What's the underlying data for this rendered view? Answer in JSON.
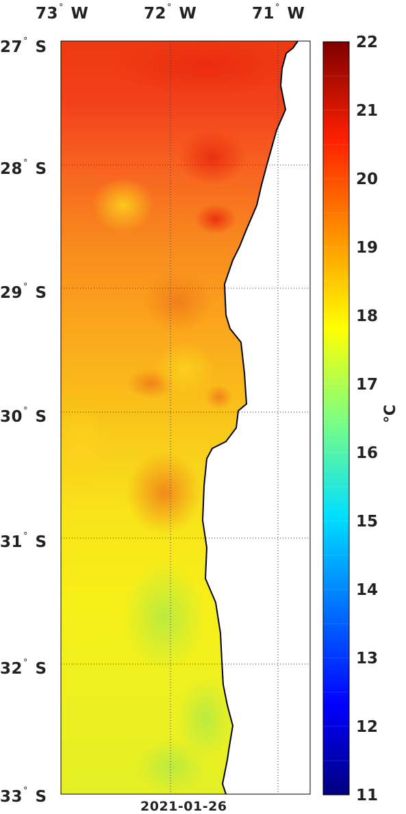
{
  "map": {
    "date": "2021-01-26",
    "longitude_labels": [
      "73",
      "72",
      "71"
    ],
    "longitude_suffix": "W",
    "latitude_labels": [
      "27",
      "28",
      "29",
      "30",
      "31",
      "32",
      "33"
    ],
    "latitude_suffix": "S",
    "degree_symbol": "°"
  },
  "colorbar": {
    "ticks": [
      "22",
      "21",
      "20",
      "19",
      "18",
      "17",
      "16",
      "15",
      "14",
      "13",
      "12",
      "11"
    ],
    "unit": "°C",
    "min": 11,
    "max": 22
  },
  "colors": {
    "land": "#ffffff",
    "coastline": "#000000",
    "grid": "#333333"
  }
}
